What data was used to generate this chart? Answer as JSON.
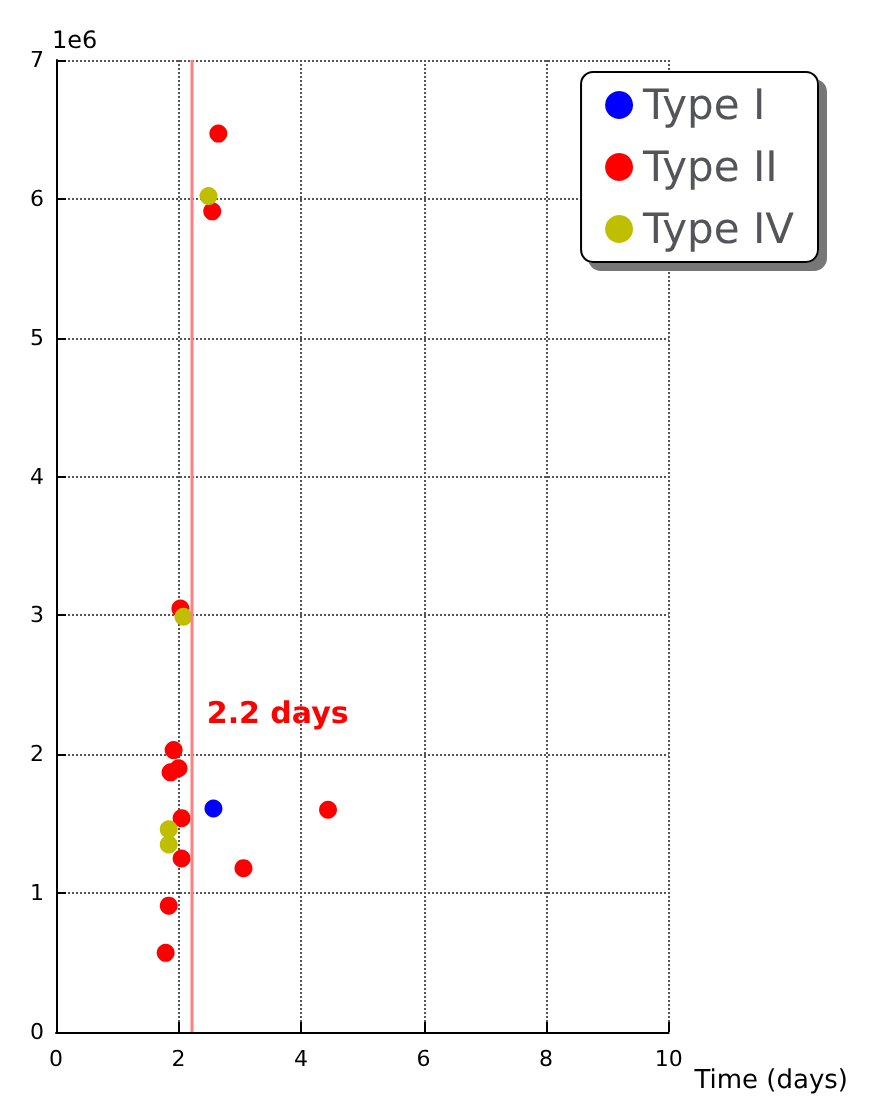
{
  "chart_data": {
    "type": "scatter",
    "xlabel": "Time (days)",
    "xlim": [
      0,
      10
    ],
    "xticks": [
      0,
      2,
      4,
      6,
      8,
      10
    ],
    "ylim": [
      0,
      7
    ],
    "yticks": [
      0,
      1,
      2,
      3,
      4,
      5,
      6,
      7
    ],
    "grid": true,
    "legend": "top right",
    "marker": "circle",
    "series": [
      {
        "name": "Type I",
        "color": "#0000ff",
        "x": [
          2.57
        ],
        "values": [
          1.61
        ]
      },
      {
        "name": "Type II",
        "color": "#ff0000",
        "x": [
          2.65,
          2.55,
          2.03,
          1.92,
          1.87,
          2.0,
          2.05,
          2.05,
          3.06,
          4.44,
          1.84,
          1.79
        ],
        "values": [
          6.47,
          5.91,
          3.05,
          2.03,
          1.87,
          1.9,
          1.54,
          1.25,
          1.18,
          1.6,
          0.91,
          0.57
        ]
      },
      {
        "name": "Type IV",
        "color": "#bfbf00",
        "x": [
          2.49,
          2.08,
          1.84,
          1.84
        ],
        "values": [
          6.02,
          2.99,
          1.46,
          1.35
        ]
      }
    ],
    "ref_lines": [
      {
        "axis": "x",
        "value": 2.2,
        "color": "#ff8080",
        "line_style": "solid"
      }
    ],
    "annotations": [
      "1e6",
      {
        "text": "2.2 days",
        "x": 2.2,
        "y": 2.3
      }
    ]
  }
}
